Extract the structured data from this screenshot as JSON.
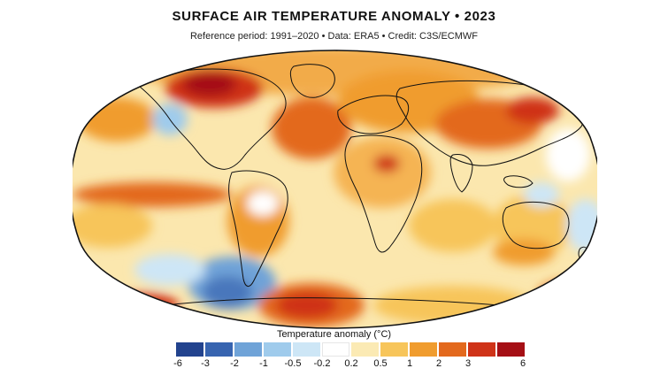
{
  "title": "SURFACE AIR TEMPERATURE ANOMALY • 2023",
  "subtitle": "Reference period: 1991–2020 • Data: ERA5 • Credit: C3S/ECMWF",
  "legend": {
    "title": "Temperature anomaly (°C)",
    "colors": [
      "#22438e",
      "#3764b0",
      "#6fa3d8",
      "#9fcbec",
      "#cde6f6",
      "#ffffff",
      "#fbeab4",
      "#f7c55a",
      "#f09c2e",
      "#e3691d",
      "#cf3318",
      "#a50f15"
    ],
    "ticks": [
      "-6",
      "-3",
      "-2",
      "-1",
      "-0.5",
      "-0.2",
      "0.2",
      "0.5",
      "1",
      "2",
      "3",
      "6"
    ]
  },
  "map": {
    "ocean_base_color": "#fbe7ae",
    "land_base_color": "#f5b452",
    "coastline_color": "#111111"
  }
}
